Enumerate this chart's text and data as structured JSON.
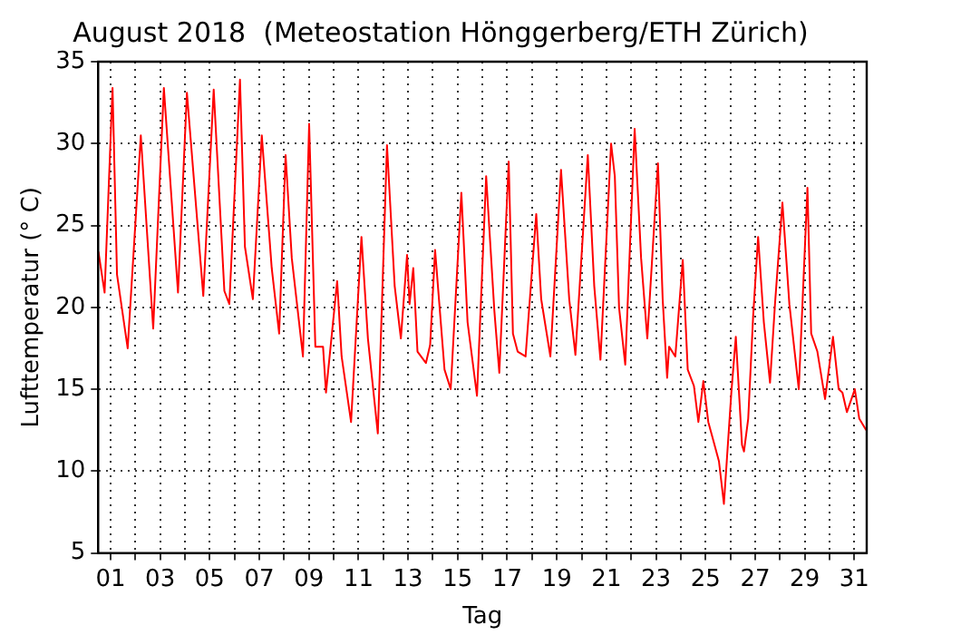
{
  "chart_data": {
    "type": "line",
    "title": "August 2018  (Meteostation Hönggerberg/ETH Zürich)",
    "xlabel": "Tag",
    "ylabel": "Lufttemperatur (° C)",
    "xlim": [
      0.5,
      31.5
    ],
    "ylim": [
      5,
      35
    ],
    "xticks": [
      {
        "value": 1,
        "label": "01"
      },
      {
        "value": 2,
        "label": null
      },
      {
        "value": 3,
        "label": "03"
      },
      {
        "value": 4,
        "label": null
      },
      {
        "value": 5,
        "label": "05"
      },
      {
        "value": 6,
        "label": null
      },
      {
        "value": 7,
        "label": "07"
      },
      {
        "value": 8,
        "label": null
      },
      {
        "value": 9,
        "label": "09"
      },
      {
        "value": 10,
        "label": null
      },
      {
        "value": 11,
        "label": "11"
      },
      {
        "value": 12,
        "label": null
      },
      {
        "value": 13,
        "label": "13"
      },
      {
        "value": 14,
        "label": null
      },
      {
        "value": 15,
        "label": "15"
      },
      {
        "value": 16,
        "label": null
      },
      {
        "value": 17,
        "label": "17"
      },
      {
        "value": 18,
        "label": null
      },
      {
        "value": 19,
        "label": "19"
      },
      {
        "value": 20,
        "label": null
      },
      {
        "value": 21,
        "label": "21"
      },
      {
        "value": 22,
        "label": null
      },
      {
        "value": 23,
        "label": "23"
      },
      {
        "value": 24,
        "label": null
      },
      {
        "value": 25,
        "label": "25"
      },
      {
        "value": 26,
        "label": null
      },
      {
        "value": 27,
        "label": "27"
      },
      {
        "value": 28,
        "label": null
      },
      {
        "value": 29,
        "label": "29"
      },
      {
        "value": 30,
        "label": null
      },
      {
        "value": 31,
        "label": "31"
      }
    ],
    "yticks": [
      5,
      10,
      15,
      20,
      25,
      30,
      35
    ],
    "grid": true,
    "legend": false,
    "marker": "none",
    "line_style": "solid",
    "x": [
      0.51,
      0.76,
      1.08,
      1.26,
      1.69,
      2.22,
      2.72,
      3.15,
      3.72,
      4.08,
      4.74,
      5.16,
      5.59,
      5.79,
      6.22,
      6.42,
      6.74,
      7.1,
      7.5,
      7.8,
      8.06,
      8.31,
      8.76,
      9.01,
      9.26,
      9.57,
      9.69,
      10.14,
      10.32,
      10.7,
      11.12,
      11.38,
      11.78,
      12.15,
      12.46,
      12.71,
      12.96,
      13.06,
      13.21,
      13.38,
      13.72,
      13.89,
      14.09,
      14.47,
      14.72,
      15.15,
      15.4,
      15.78,
      16.15,
      16.48,
      16.68,
      17.06,
      17.23,
      17.42,
      17.74,
      18.17,
      18.37,
      18.74,
      19.17,
      19.5,
      19.75,
      20.25,
      20.51,
      20.76,
      21.19,
      21.34,
      21.51,
      21.76,
      22.14,
      22.4,
      22.65,
      23.08,
      23.27,
      23.45,
      23.53,
      23.78,
      24.08,
      24.28,
      24.53,
      24.71,
      24.91,
      25.11,
      25.29,
      25.54,
      25.74,
      26.04,
      26.22,
      26.47,
      26.55,
      26.72,
      26.92,
      27.12,
      27.35,
      27.6,
      27.8,
      28.1,
      28.38,
      28.76,
      29.11,
      29.26,
      29.51,
      29.82,
      30.14,
      30.37,
      30.52,
      30.7,
      31.02,
      31.2,
      31.48
    ],
    "series": [
      {
        "color": "#ff0000",
        "values": [
          23.4,
          20.9,
          33.4,
          22,
          17.5,
          30.5,
          18.7,
          33.4,
          20.9,
          33.1,
          20.7,
          33.3,
          21,
          20.2,
          33.9,
          23.7,
          20.5,
          30.5,
          22.4,
          18.4,
          29.3,
          23,
          17,
          31.2,
          17.6,
          17.6,
          14.8,
          21.6,
          17,
          13,
          24.3,
          18.1,
          12.3,
          29.9,
          21.3,
          18.1,
          23.2,
          20.2,
          22.4,
          17.3,
          16.6,
          17.7,
          23.5,
          16.2,
          15,
          27,
          19.1,
          14.6,
          28,
          19.8,
          16,
          28.9,
          18.4,
          17.3,
          17,
          25.7,
          20.5,
          17,
          28.4,
          20.5,
          17.1,
          29.3,
          21.3,
          16.8,
          30,
          28,
          20,
          16.5,
          30.9,
          23,
          18.1,
          28.8,
          20.5,
          15.7,
          17.6,
          17,
          22.9,
          16.2,
          15.2,
          13,
          15.5,
          13,
          12,
          10.6,
          8,
          14.8,
          18.2,
          11.6,
          11.2,
          13.2,
          19.5,
          24.3,
          19.1,
          15.4,
          20.2,
          26.4,
          20.2,
          15,
          27.3,
          18.4,
          17.3,
          14.4,
          18.2,
          15,
          14.8,
          13.6,
          15,
          13.2,
          12.5
        ]
      }
    ]
  }
}
